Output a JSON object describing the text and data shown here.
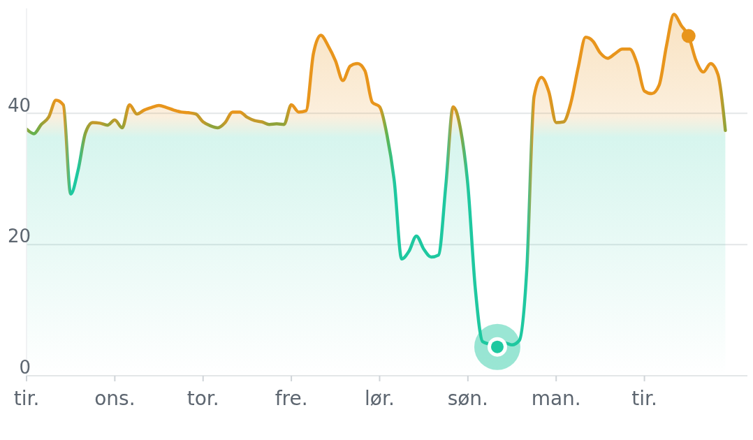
{
  "chart_data": {
    "type": "area",
    "categories": [
      "tir.",
      null,
      null,
      null,
      null,
      null,
      null,
      null,
      null,
      null,
      null,
      null,
      "ons.",
      null,
      null,
      null,
      null,
      null,
      null,
      null,
      null,
      null,
      null,
      null,
      "tor.",
      null,
      null,
      null,
      null,
      null,
      null,
      null,
      null,
      null,
      null,
      null,
      "fre.",
      null,
      null,
      null,
      null,
      null,
      null,
      null,
      null,
      null,
      null,
      null,
      "lør.",
      null,
      null,
      null,
      null,
      null,
      null,
      null,
      null,
      null,
      null,
      null,
      "søn.",
      null,
      null,
      null,
      null,
      null,
      null,
      null,
      null,
      null,
      null,
      null,
      "man.",
      null,
      null,
      null,
      null,
      null,
      null,
      null,
      null,
      null,
      null,
      null,
      "tir.",
      null,
      null,
      null,
      null,
      null,
      null,
      null,
      null,
      null,
      null,
      null,
      null,
      null,
      null
    ],
    "ylim": [
      0,
      56
    ],
    "yticks": [
      0,
      20,
      40
    ],
    "grid": "y",
    "marker": "none",
    "line_style": "solid",
    "series": [
      {
        "values": [
          37.6,
          36.9,
          38.3,
          39.4,
          42,
          41.3,
          27.7,
          31.3,
          37,
          38.6,
          38.5,
          38.2,
          39,
          37.8,
          41.3,
          39.9,
          40.5,
          40.9,
          41.2,
          40.9,
          40.5,
          40.2,
          40.1,
          39.9,
          38.7,
          38.1,
          37.8,
          38.6,
          40.2,
          40.2,
          39.4,
          38.9,
          38.7,
          38.3,
          38.4,
          38.3,
          41.3,
          40.2,
          40.4,
          49.1,
          51.9,
          50.3,
          48,
          45,
          47.2,
          47.6,
          46.5,
          41.7,
          41,
          36.7,
          29.6,
          17.8,
          19,
          21.3,
          19.3,
          18.1,
          18.4,
          29,
          41,
          37.6,
          29,
          13.4,
          5.2,
          4.8,
          4.4,
          5,
          4.7,
          5.4,
          16,
          42.6,
          45.5,
          43.3,
          38.6,
          38.7,
          41.6,
          47,
          51.6,
          51,
          49.2,
          48.4,
          49.1,
          49.8,
          49.8,
          47.6,
          43.4,
          43,
          44.3,
          50.3,
          55.1,
          53.4,
          51.8,
          48.1,
          46.3,
          47.6,
          45.9,
          37.4,
          null,
          null,
          null
        ],
        "colors": [
          "#8fa33a",
          "#5fb451",
          "#8fa33a",
          "#c39a2b",
          "#e8951c",
          "#e8951c",
          "#1ec8a0",
          "#1ec8a0",
          "#8fa33a",
          "#c39a2b",
          "#c39a2b",
          "#8fa33a",
          "#c39a2b",
          "#8fa33a",
          "#e8951c",
          "#c39a2b",
          "#e8951c",
          "#e8951c",
          "#e8951c",
          "#e8951c",
          "#e8951c",
          "#e8951c",
          "#e8951c",
          "#c39a2b",
          "#c39a2b",
          "#8fa33a",
          "#8fa33a",
          "#c39a2b",
          "#e8951c",
          "#e8951c",
          "#c39a2b",
          "#c39a2b",
          "#c39a2b",
          "#8fa33a",
          "#8fa33a",
          "#8fa33a",
          "#e8951c",
          "#e8951c",
          "#e8951c",
          "#e8951c",
          "#e8951c",
          "#e8951c",
          "#e8951c",
          "#e8951c",
          "#e8951c",
          "#e8951c",
          "#e8951c",
          "#e8951c",
          "#e8951c",
          "#5fb451",
          "#1ec8a0",
          "#1ec8a0",
          "#1ec8a0",
          "#1ec8a0",
          "#1ec8a0",
          "#1ec8a0",
          "#1ec8a0",
          "#1ec8a0",
          "#e8951c",
          "#8fa33a",
          "#1ec8a0",
          "#1ec8a0",
          "#1ec8a0",
          "#1ec8a0",
          "#1ec8a0",
          "#1ec8a0",
          "#1ec8a0",
          "#1ec8a0",
          "#1ec8a0",
          "#e8951c",
          "#e8951c",
          "#e8951c",
          "#c39a2b",
          "#c39a2b",
          "#e8951c",
          "#e8951c",
          "#e8951c",
          "#e8951c",
          "#e8951c",
          "#e8951c",
          "#e8951c",
          "#e8951c",
          "#e8951c",
          "#e8951c",
          "#e8951c",
          "#e8951c",
          "#e8951c",
          "#e8951c",
          "#e8951c",
          "#e8951c",
          "#e8951c",
          "#e8951c",
          "#e8951c",
          "#e8951c",
          "#e8951c",
          "#8fa33a",
          null,
          null,
          null
        ]
      },
      {
        "type": "scatter",
        "marker": "circle",
        "values": [
          null,
          null,
          null,
          null,
          null,
          null,
          null,
          null,
          null,
          null,
          null,
          null,
          null,
          null,
          null,
          null,
          null,
          null,
          null,
          null,
          null,
          null,
          null,
          null,
          null,
          null,
          null,
          null,
          null,
          null,
          null,
          null,
          null,
          null,
          null,
          null,
          null,
          null,
          null,
          null,
          null,
          null,
          null,
          null,
          null,
          null,
          null,
          null,
          null,
          null,
          null,
          null,
          null,
          null,
          null,
          null,
          null,
          null,
          null,
          null,
          null,
          null,
          null,
          null,
          4.4,
          null,
          null,
          null,
          null,
          null,
          null,
          null,
          null,
          null,
          null,
          null,
          null,
          null,
          null,
          null,
          null,
          null,
          null,
          null,
          null,
          null,
          null,
          null,
          null,
          null,
          51.8,
          null,
          null,
          null,
          null,
          null,
          null,
          null,
          null
        ],
        "colors": [
          null,
          null,
          null,
          null,
          null,
          null,
          null,
          null,
          null,
          null,
          null,
          null,
          null,
          null,
          null,
          null,
          null,
          null,
          null,
          null,
          null,
          null,
          null,
          null,
          null,
          null,
          null,
          null,
          null,
          null,
          null,
          null,
          null,
          null,
          null,
          null,
          null,
          null,
          null,
          null,
          null,
          null,
          null,
          null,
          null,
          null,
          null,
          null,
          null,
          null,
          null,
          null,
          null,
          null,
          null,
          null,
          null,
          null,
          null,
          null,
          null,
          null,
          null,
          null,
          "#1ec8a0",
          null,
          null,
          null,
          null,
          null,
          null,
          null,
          null,
          null,
          null,
          null,
          null,
          null,
          null,
          null,
          null,
          null,
          null,
          null,
          null,
          null,
          null,
          null,
          null,
          null,
          "#e8951c",
          null,
          null,
          null,
          null,
          null,
          null,
          null,
          null
        ]
      }
    ]
  }
}
